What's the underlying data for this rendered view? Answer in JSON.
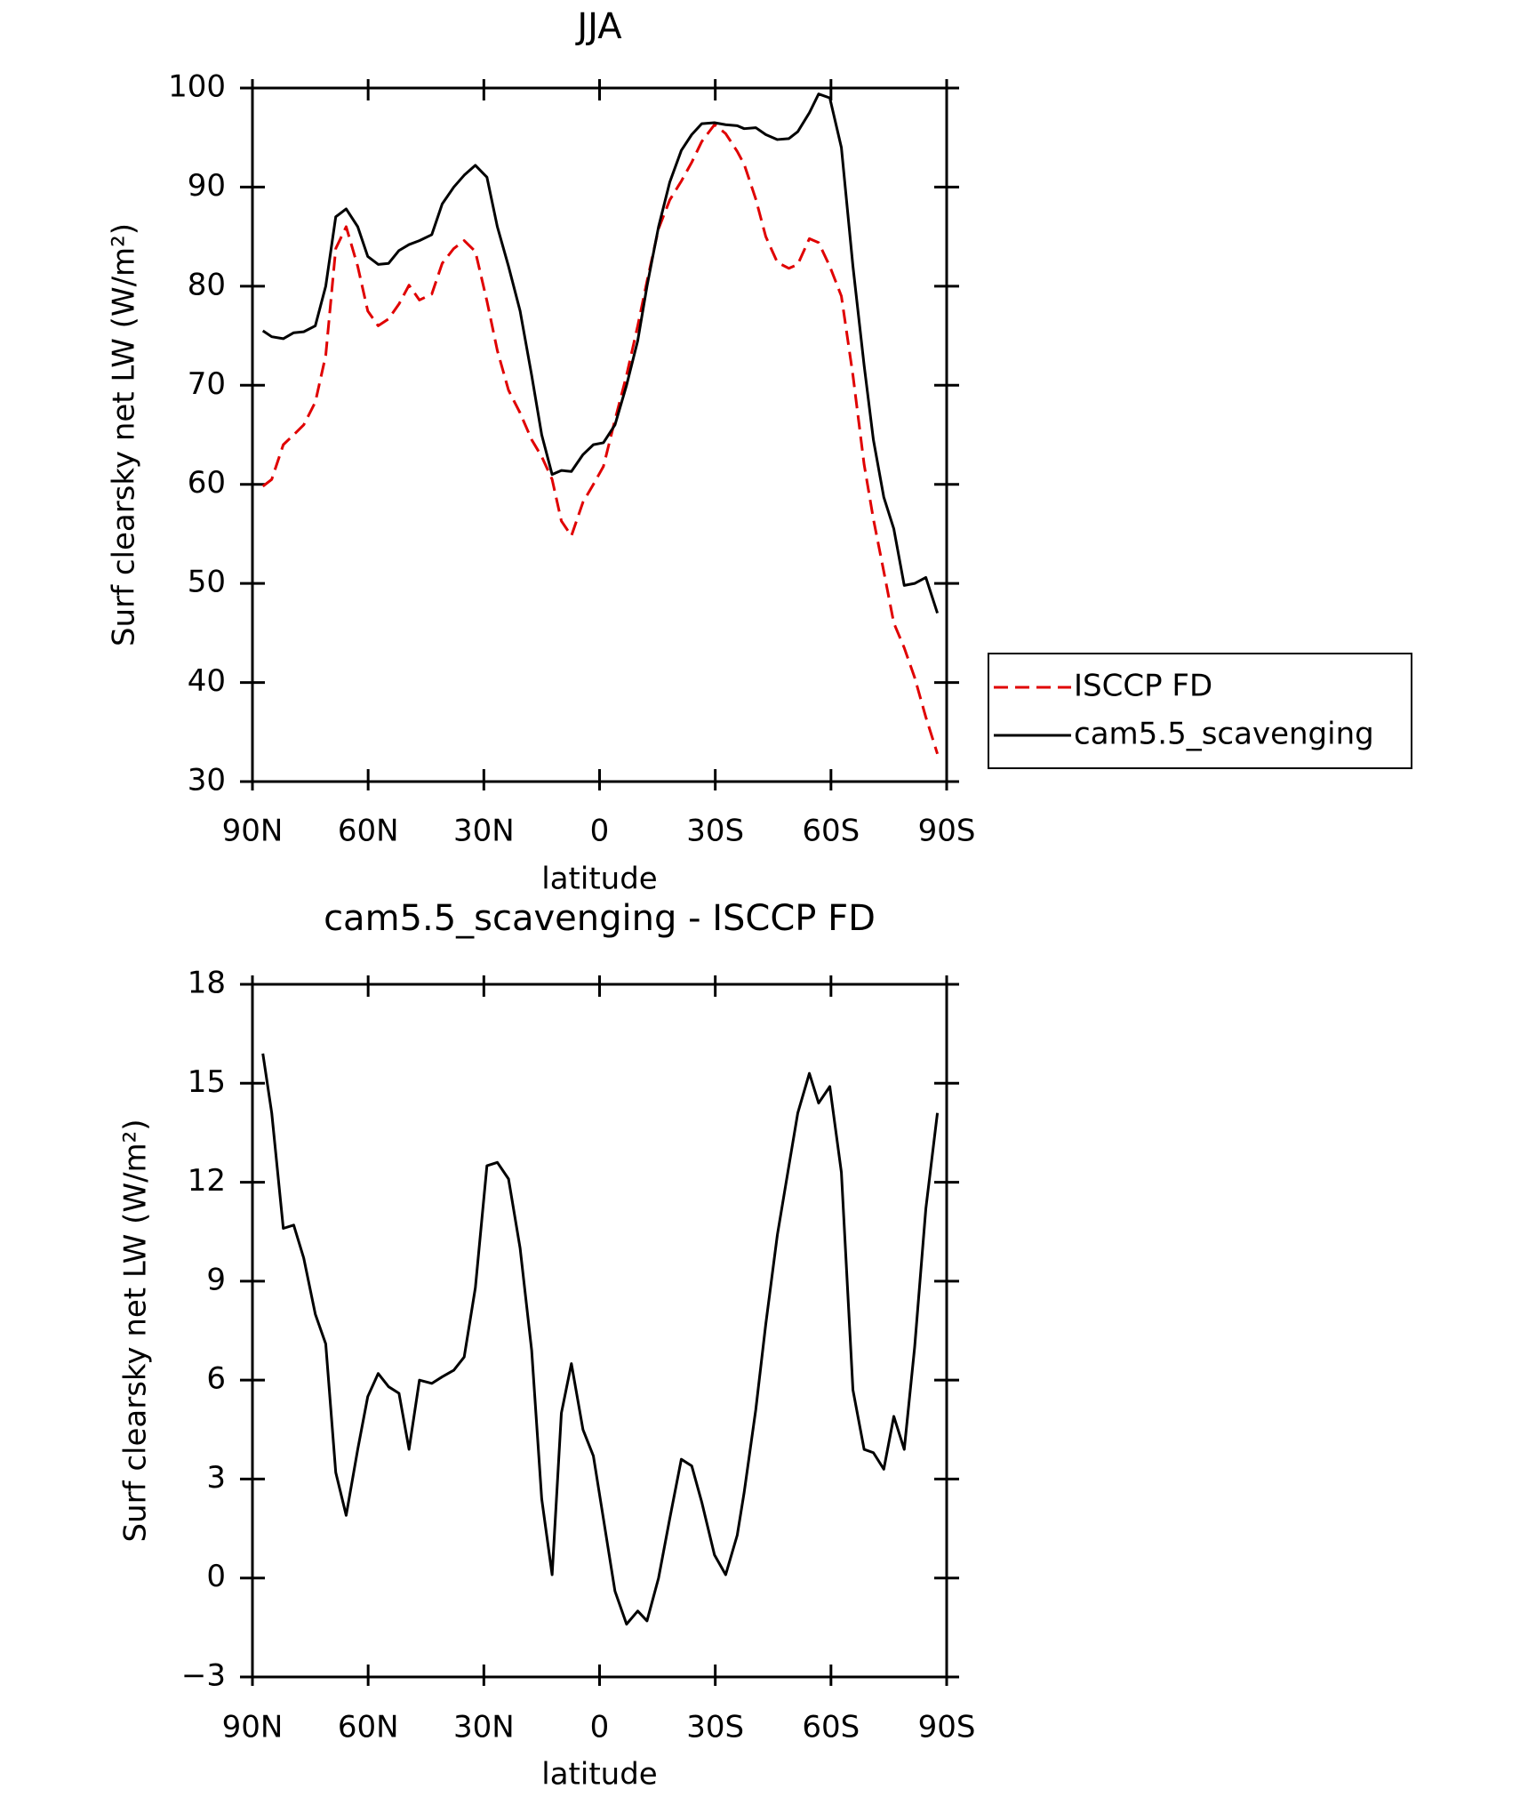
{
  "chart_data": [
    {
      "type": "line",
      "title": "JJA",
      "xlabel": "latitude",
      "ylabel": "Surf clearsky net LW (W/m²)",
      "x": [
        87.3,
        85.0,
        82.0,
        79.3,
        76.7,
        73.7,
        71.0,
        68.4,
        65.7,
        62.7,
        60.1,
        57.4,
        54.7,
        52.0,
        49.4,
        46.7,
        43.5,
        40.8,
        37.8,
        35.1,
        32.2,
        29.2,
        26.5,
        23.6,
        20.6,
        17.6,
        15.0,
        12.3,
        9.9,
        7.3,
        4.3,
        1.6,
        -1.0,
        -4.0,
        -7.0,
        -9.9,
        -12.3,
        -15.3,
        -18.2,
        -21.2,
        -23.9,
        -26.5,
        -29.8,
        -32.7,
        -35.7,
        -37.5,
        -40.5,
        -43.1,
        -46.1,
        -49.1,
        -51.4,
        -54.4,
        -56.8,
        -59.7,
        -62.7,
        -65.7,
        -68.6,
        -71.0,
        -73.7,
        -76.3,
        -79.0,
        -81.7,
        -84.6,
        -87.6
      ],
      "series": [
        {
          "name": "ISCCP FD",
          "color": "#e00000",
          "dash": true,
          "values": [
            59.8,
            60.5,
            64,
            65,
            66,
            68.3,
            73,
            83.8,
            86,
            82,
            77.5,
            76,
            76.7,
            78.2,
            80.1,
            78.6,
            79.2,
            82.3,
            83.8,
            84.6,
            83.5,
            78.5,
            73.5,
            69.5,
            67.2,
            64.5,
            62.8,
            60.5,
            56.3,
            54.8,
            58.2,
            60,
            61.8,
            66.5,
            71,
            76,
            80.5,
            85.8,
            88.7,
            90.6,
            92.5,
            94.6,
            96.3,
            95.4,
            93.6,
            92.3,
            88.8,
            85,
            82.4,
            81.8,
            82.2,
            84.8,
            84.4,
            82,
            79,
            71,
            62,
            56.5,
            51.2,
            46,
            43.5,
            40.5,
            36.5,
            32.8
          ]
        },
        {
          "name": "cam5.5_scavenging",
          "color": "#000000",
          "dash": false,
          "values": [
            75.5,
            74.9,
            74.7,
            75.3,
            75.4,
            76,
            80,
            87,
            87.8,
            86,
            83,
            82.2,
            82.3,
            83.6,
            84.2,
            84.6,
            85.2,
            88.3,
            90,
            91.2,
            92.2,
            91,
            86,
            82,
            77.5,
            71,
            65,
            61,
            61.4,
            61.3,
            63,
            64,
            64.2,
            66,
            70,
            74.5,
            80,
            86,
            90.5,
            93.7,
            95.3,
            96.4,
            96.5,
            96.3,
            96.2,
            95.9,
            96,
            95.3,
            94.8,
            94.9,
            95.6,
            97.5,
            99.4,
            99,
            94,
            82,
            72,
            64.5,
            58.7,
            55.5,
            49.8,
            50,
            50.6,
            47
          ]
        }
      ],
      "xlim": [
        90,
        -90
      ],
      "xticks": [
        {
          "value": 90,
          "label": "90N"
        },
        {
          "value": 60,
          "label": "60N"
        },
        {
          "value": 30,
          "label": "30N"
        },
        0,
        {
          "value": -30,
          "label": "30S"
        },
        {
          "value": -60,
          "label": "60S"
        },
        {
          "value": -90,
          "label": "90S"
        }
      ],
      "ylim": [
        30,
        100
      ],
      "yticks": [
        30,
        40,
        50,
        60,
        70,
        80,
        90,
        100
      ],
      "legend": "outside-right"
    },
    {
      "type": "line",
      "title": "cam5.5_scavenging - ISCCP FD",
      "xlabel": "latitude",
      "ylabel": "Surf clearsky net LW (W/m²)",
      "x": [
        87.3,
        85.0,
        82.0,
        79.3,
        76.7,
        73.7,
        71.0,
        68.4,
        65.7,
        62.7,
        60.1,
        57.4,
        54.7,
        52.0,
        49.4,
        46.7,
        43.5,
        40.8,
        37.8,
        35.1,
        32.2,
        29.2,
        26.5,
        23.6,
        20.6,
        17.6,
        15.0,
        12.3,
        9.9,
        7.3,
        4.3,
        1.6,
        -1.0,
        -4.0,
        -7.0,
        -9.9,
        -12.3,
        -15.3,
        -18.2,
        -21.2,
        -23.9,
        -26.5,
        -29.8,
        -32.7,
        -35.7,
        -37.5,
        -40.5,
        -43.1,
        -46.1,
        -49.1,
        -51.4,
        -54.4,
        -56.8,
        -59.7,
        -62.7,
        -65.7,
        -68.6,
        -71.0,
        -73.7,
        -76.3,
        -79.0,
        -81.7,
        -84.6,
        -87.6
      ],
      "series": [
        {
          "color": "#000000",
          "dash": false,
          "values": [
            15.9,
            14.1,
            10.6,
            10.7,
            9.7,
            8,
            7.1,
            3.2,
            1.9,
            3.9,
            5.5,
            6.2,
            5.8,
            5.6,
            3.9,
            6,
            5.9,
            6.1,
            6.3,
            6.7,
            8.8,
            12.5,
            12.6,
            12.1,
            10,
            6.9,
            2.4,
            0.1,
            5,
            6.5,
            4.5,
            3.7,
            1.8,
            -0.4,
            -1.4,
            -1,
            -1.3,
            0,
            1.8,
            3.6,
            3.4,
            2.3,
            0.7,
            0.1,
            1.3,
            2.6,
            5.1,
            7.7,
            10.4,
            12.5,
            14.1,
            15.3,
            14.4,
            14.9,
            12.3,
            5.7,
            3.9,
            3.8,
            3.3,
            4.9,
            3.9,
            7,
            11.2,
            14.1
          ]
        }
      ],
      "xlim": [
        90,
        -90
      ],
      "xticks": [
        {
          "value": 90,
          "label": "90N"
        },
        {
          "value": 60,
          "label": "60N"
        },
        {
          "value": 30,
          "label": "30N"
        },
        0,
        {
          "value": -30,
          "label": "30S"
        },
        {
          "value": -60,
          "label": "60S"
        },
        {
          "value": -90,
          "label": "90S"
        }
      ],
      "ylim": [
        -3,
        18
      ],
      "yticks": [
        {
          "value": -3,
          "label": "−3"
        },
        0,
        3,
        6,
        9,
        12,
        15,
        18
      ]
    }
  ]
}
